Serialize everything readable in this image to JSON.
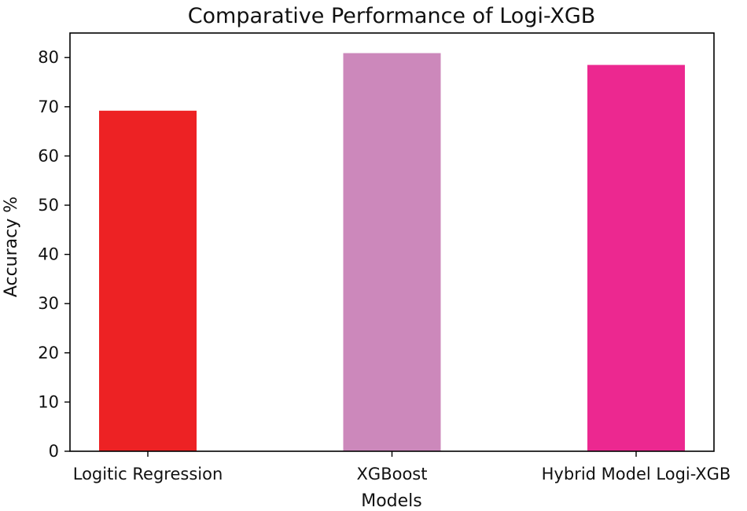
{
  "chart_data": {
    "type": "bar",
    "title": "Comparative Performance of Logi-XGB",
    "xlabel": "Models",
    "ylabel": "Accuracy %",
    "categories": [
      "Logitic Regression",
      "XGBoost",
      "Hybrid Model Logi-XGB"
    ],
    "values": [
      69.2,
      80.9,
      78.5
    ],
    "colors": [
      "#ed2224",
      "#cc88bb",
      "#ec2890"
    ],
    "ylim": [
      0,
      85
    ],
    "yticks": [
      0,
      10,
      20,
      30,
      40,
      50,
      60,
      70,
      80
    ],
    "grid": false,
    "legend": "none"
  }
}
